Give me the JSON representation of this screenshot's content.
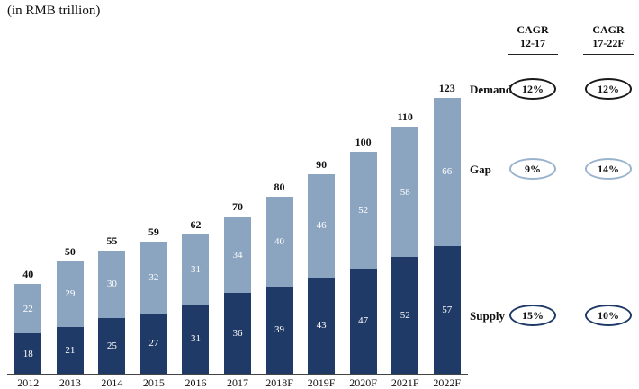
{
  "title": "(in RMB trillion)",
  "colors": {
    "supply": "#1f3a66",
    "gap": "#8ba5c1",
    "axis": "#444444",
    "demand_oval_border": "#1a1a1a",
    "gap_oval_border": "#9ab3cc",
    "supply_oval_border": "#1f3a66"
  },
  "chart_data": {
    "type": "bar",
    "stacked": true,
    "title": "(in RMB trillion)",
    "categories": [
      "2012",
      "2013",
      "2014",
      "2015",
      "2016",
      "2017",
      "2018F",
      "2019F",
      "2020F",
      "2021F",
      "2022F"
    ],
    "series": [
      {
        "name": "Supply",
        "values": [
          18,
          21,
          25,
          27,
          31,
          36,
          39,
          43,
          47,
          52,
          57
        ]
      },
      {
        "name": "Gap",
        "values": [
          22,
          29,
          30,
          32,
          31,
          34,
          40,
          46,
          52,
          58,
          66
        ]
      }
    ],
    "totals": [
      40,
      50,
      55,
      59,
      62,
      70,
      80,
      90,
      100,
      110,
      123
    ],
    "xlabel": "",
    "ylabel": "",
    "ylim": [
      0,
      130
    ],
    "grid": false,
    "legend_position": "right-inline-labels"
  },
  "right_panel": {
    "col1_header_line1": "CAGR",
    "col1_header_line2": "12-17",
    "col2_header_line1": "CAGR",
    "col2_header_line2": "17-22F",
    "rows": [
      {
        "label": "Demand",
        "cagr_12_17": "12%",
        "cagr_17_22": "12%"
      },
      {
        "label": "Gap",
        "cagr_12_17": "9%",
        "cagr_17_22": "14%"
      },
      {
        "label": "Supply",
        "cagr_12_17": "15%",
        "cagr_17_22": "10%"
      }
    ]
  }
}
